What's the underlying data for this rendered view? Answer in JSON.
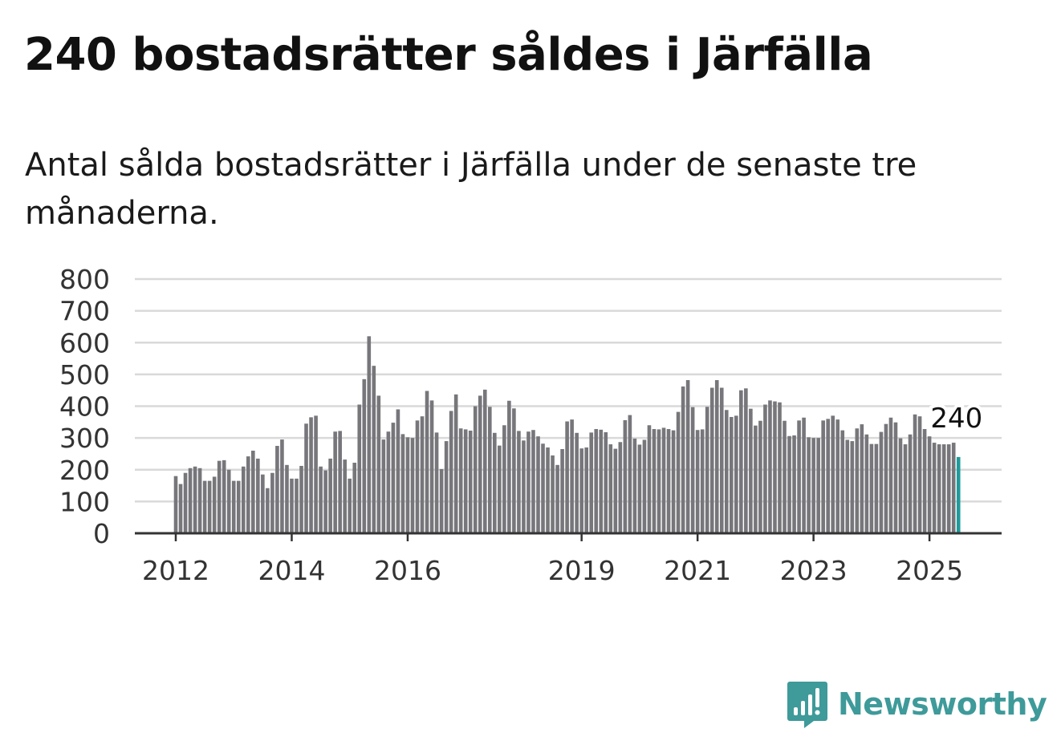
{
  "header": {
    "title": "240 bostadsrätter såldes i Järfälla",
    "subtitle": "Antal sålda bostadsrätter i Järfälla under de senaste tre månaderna."
  },
  "colors": {
    "bar": "#76767b",
    "highlight": "#1f9b9b",
    "grid": "#d9d9d9",
    "axis": "#333333",
    "brand": "#3f9a9a"
  },
  "chart_data": {
    "type": "bar",
    "x_start": "2012-01",
    "ylim": [
      0,
      800
    ],
    "yticks": [
      "800",
      "700",
      "600",
      "500",
      "400",
      "300",
      "200",
      "100",
      "0"
    ],
    "xticks": [
      "2012",
      "2014",
      "2016",
      "2019",
      "2021",
      "2023",
      "2025"
    ],
    "grid": true,
    "highlight_last": true,
    "last_value_label": "240",
    "values": [
      180,
      155,
      190,
      205,
      210,
      205,
      165,
      165,
      178,
      228,
      230,
      200,
      165,
      165,
      210,
      242,
      260,
      235,
      185,
      142,
      190,
      275,
      295,
      215,
      172,
      172,
      212,
      345,
      365,
      370,
      210,
      198,
      235,
      320,
      322,
      232,
      172,
      222,
      405,
      485,
      620,
      527,
      433,
      295,
      320,
      348,
      390,
      312,
      302,
      300,
      355,
      368,
      448,
      418,
      317,
      202,
      290,
      385,
      437,
      330,
      327,
      323,
      400,
      433,
      452,
      398,
      316,
      276,
      340,
      417,
      393,
      322,
      292,
      320,
      325,
      305,
      282,
      270,
      245,
      215,
      265,
      352,
      358,
      316,
      267,
      270,
      317,
      328,
      326,
      318,
      280,
      266,
      287,
      356,
      372,
      298,
      279,
      294,
      340,
      328,
      327,
      332,
      328,
      324,
      382,
      462,
      482,
      397,
      325,
      327,
      398,
      458,
      482,
      458,
      388,
      366,
      370,
      450,
      456,
      392,
      339,
      354,
      405,
      418,
      415,
      412,
      354,
      306,
      308,
      355,
      364,
      302,
      300,
      300,
      355,
      360,
      370,
      358,
      324,
      294,
      290,
      330,
      343,
      311,
      281,
      281,
      319,
      344,
      364,
      349,
      299,
      280,
      311,
      374,
      368,
      328,
      305,
      285,
      280,
      280,
      280,
      285,
      240
    ]
  },
  "branding": {
    "name": "Newsworthy",
    "logo_icon": "bar-chart-speech-bubble-icon"
  }
}
